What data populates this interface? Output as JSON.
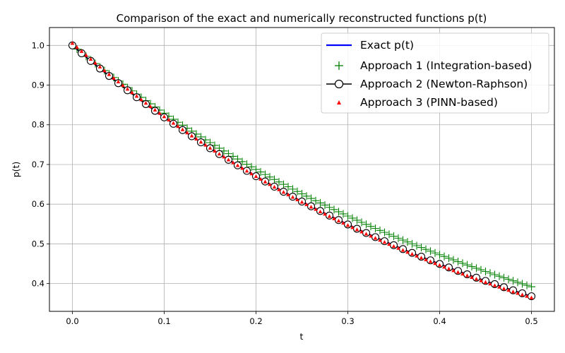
{
  "chart_data": {
    "type": "line",
    "title": "Comparison of the exact and numerically reconstructed functions p(t)",
    "xlabel": "t",
    "ylabel": "p(t)",
    "xlim": [
      -0.025,
      0.525
    ],
    "ylim": [
      0.33,
      1.045
    ],
    "xticks": [
      "0.0",
      "0.1",
      "0.2",
      "0.3",
      "0.4",
      "0.5"
    ],
    "yticks": [
      "0.4",
      "0.5",
      "0.6",
      "0.7",
      "0.8",
      "0.9",
      "1.0"
    ],
    "grid": true,
    "legend_position": "top-right",
    "x": {
      "start": 0.0,
      "end": 0.5,
      "points": 101
    },
    "series": [
      {
        "name": "Exact p(t)",
        "style": "line",
        "color": "#0000ff",
        "y_start": 1.0,
        "y_end": 0.368
      },
      {
        "name": "Approach 1 (Integration-based)",
        "style": "plus-marker",
        "color": "#008000",
        "y_start": 1.0,
        "y_end": 0.392
      },
      {
        "name": "Approach 2 (Newton-Raphson)",
        "style": "line-with-open-circles",
        "color": "#000000",
        "y_start": 1.0,
        "y_end": 0.368
      },
      {
        "name": "Approach 3 (PINN-based)",
        "style": "triangle-marker",
        "color": "#ff0000",
        "y_start": 1.005,
        "y_end": 0.364
      }
    ]
  }
}
